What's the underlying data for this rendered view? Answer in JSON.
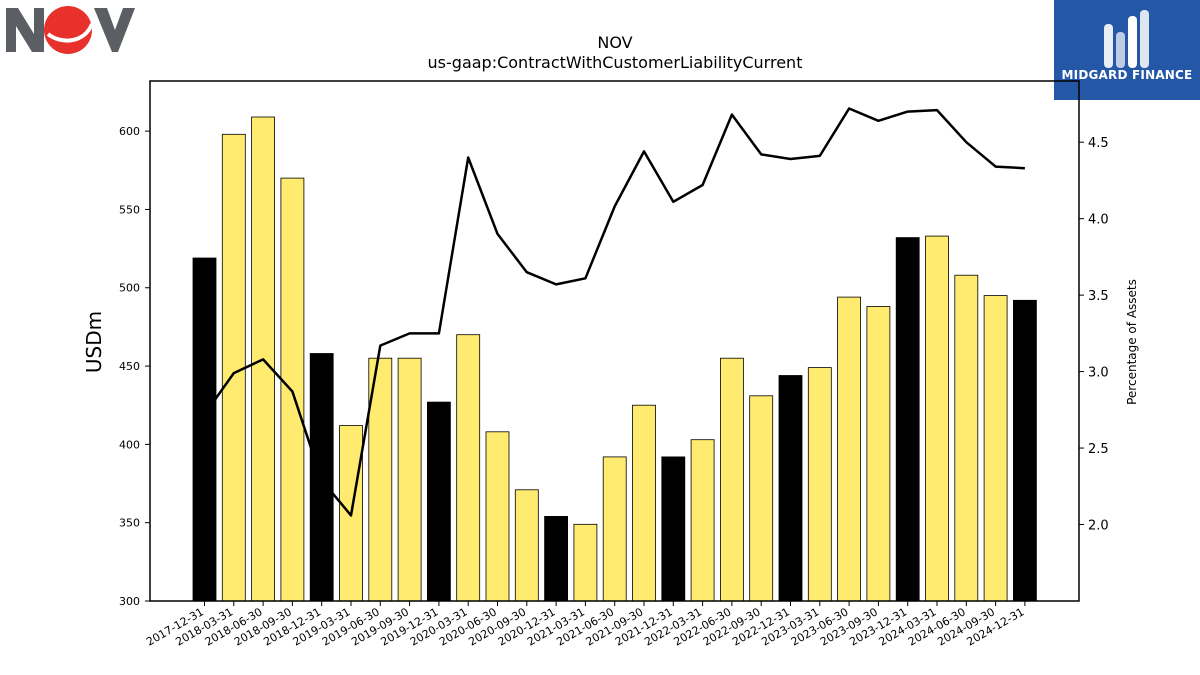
{
  "header": {
    "company_logo": "NOV",
    "brand_logo_text": "MIDGARD FINANCE"
  },
  "colors": {
    "bar_fill": "#ffeb70",
    "bar_highlight": "#000000",
    "line": "#000000",
    "brand_bg": "#2557a7",
    "logo_gray": "#5b5f63",
    "logo_red": "#e8312b"
  },
  "chart_data": {
    "type": "bar",
    "title": "NOV",
    "subtitle": "us-gaap:ContractWithCustomerLiabilityCurrent",
    "ylabel": "USDm",
    "y2label": "Percentage of Assets",
    "ylim": [
      300,
      632
    ],
    "y2lim": [
      1.5,
      4.9
    ],
    "yticks": [
      300,
      350,
      400,
      450,
      500,
      550,
      600
    ],
    "y2ticks": [
      2.0,
      2.5,
      3.0,
      3.5,
      4.0,
      4.5
    ],
    "y2tick_labels": [
      "2.0",
      "2.5",
      "3.0",
      "3.5",
      "4.0",
      "4.5"
    ],
    "categories": [
      "2017-12-31",
      "2018-03-31",
      "2018-06-30",
      "2018-09-30",
      "2018-12-31",
      "2019-03-31",
      "2019-06-30",
      "2019-09-30",
      "2019-12-31",
      "2020-03-31",
      "2020-06-30",
      "2020-09-30",
      "2020-12-31",
      "2021-03-31",
      "2021-06-30",
      "2021-09-30",
      "2021-12-31",
      "2022-03-31",
      "2022-06-30",
      "2022-09-30",
      "2022-12-31",
      "2023-03-31",
      "2023-06-30",
      "2023-09-30",
      "2023-12-31",
      "2024-03-31",
      "2024-06-30",
      "2024-09-30",
      "2024-12-31"
    ],
    "series": [
      {
        "type": "bar",
        "values": [
          519,
          598,
          609,
          570,
          458,
          412,
          455,
          455,
          427,
          470,
          408,
          371,
          354,
          349,
          392,
          425,
          392,
          403,
          455,
          431,
          444,
          449,
          494,
          488,
          532,
          533,
          508,
          495,
          492
        ],
        "highlight": [
          true,
          false,
          false,
          false,
          true,
          false,
          false,
          false,
          true,
          false,
          false,
          false,
          true,
          false,
          false,
          false,
          true,
          false,
          false,
          false,
          true,
          false,
          false,
          false,
          true,
          false,
          false,
          false,
          true
        ]
      },
      {
        "type": "line",
        "axis": "right",
        "values": [
          2.72,
          2.99,
          3.08,
          2.87,
          2.29,
          2.06,
          3.17,
          3.25,
          3.25,
          4.4,
          3.9,
          3.65,
          3.57,
          3.61,
          4.08,
          4.44,
          4.11,
          4.22,
          4.68,
          4.42,
          4.39,
          4.41,
          4.72,
          4.64,
          4.7,
          4.71,
          4.5,
          4.34,
          4.33
        ]
      }
    ],
    "grid": false
  }
}
